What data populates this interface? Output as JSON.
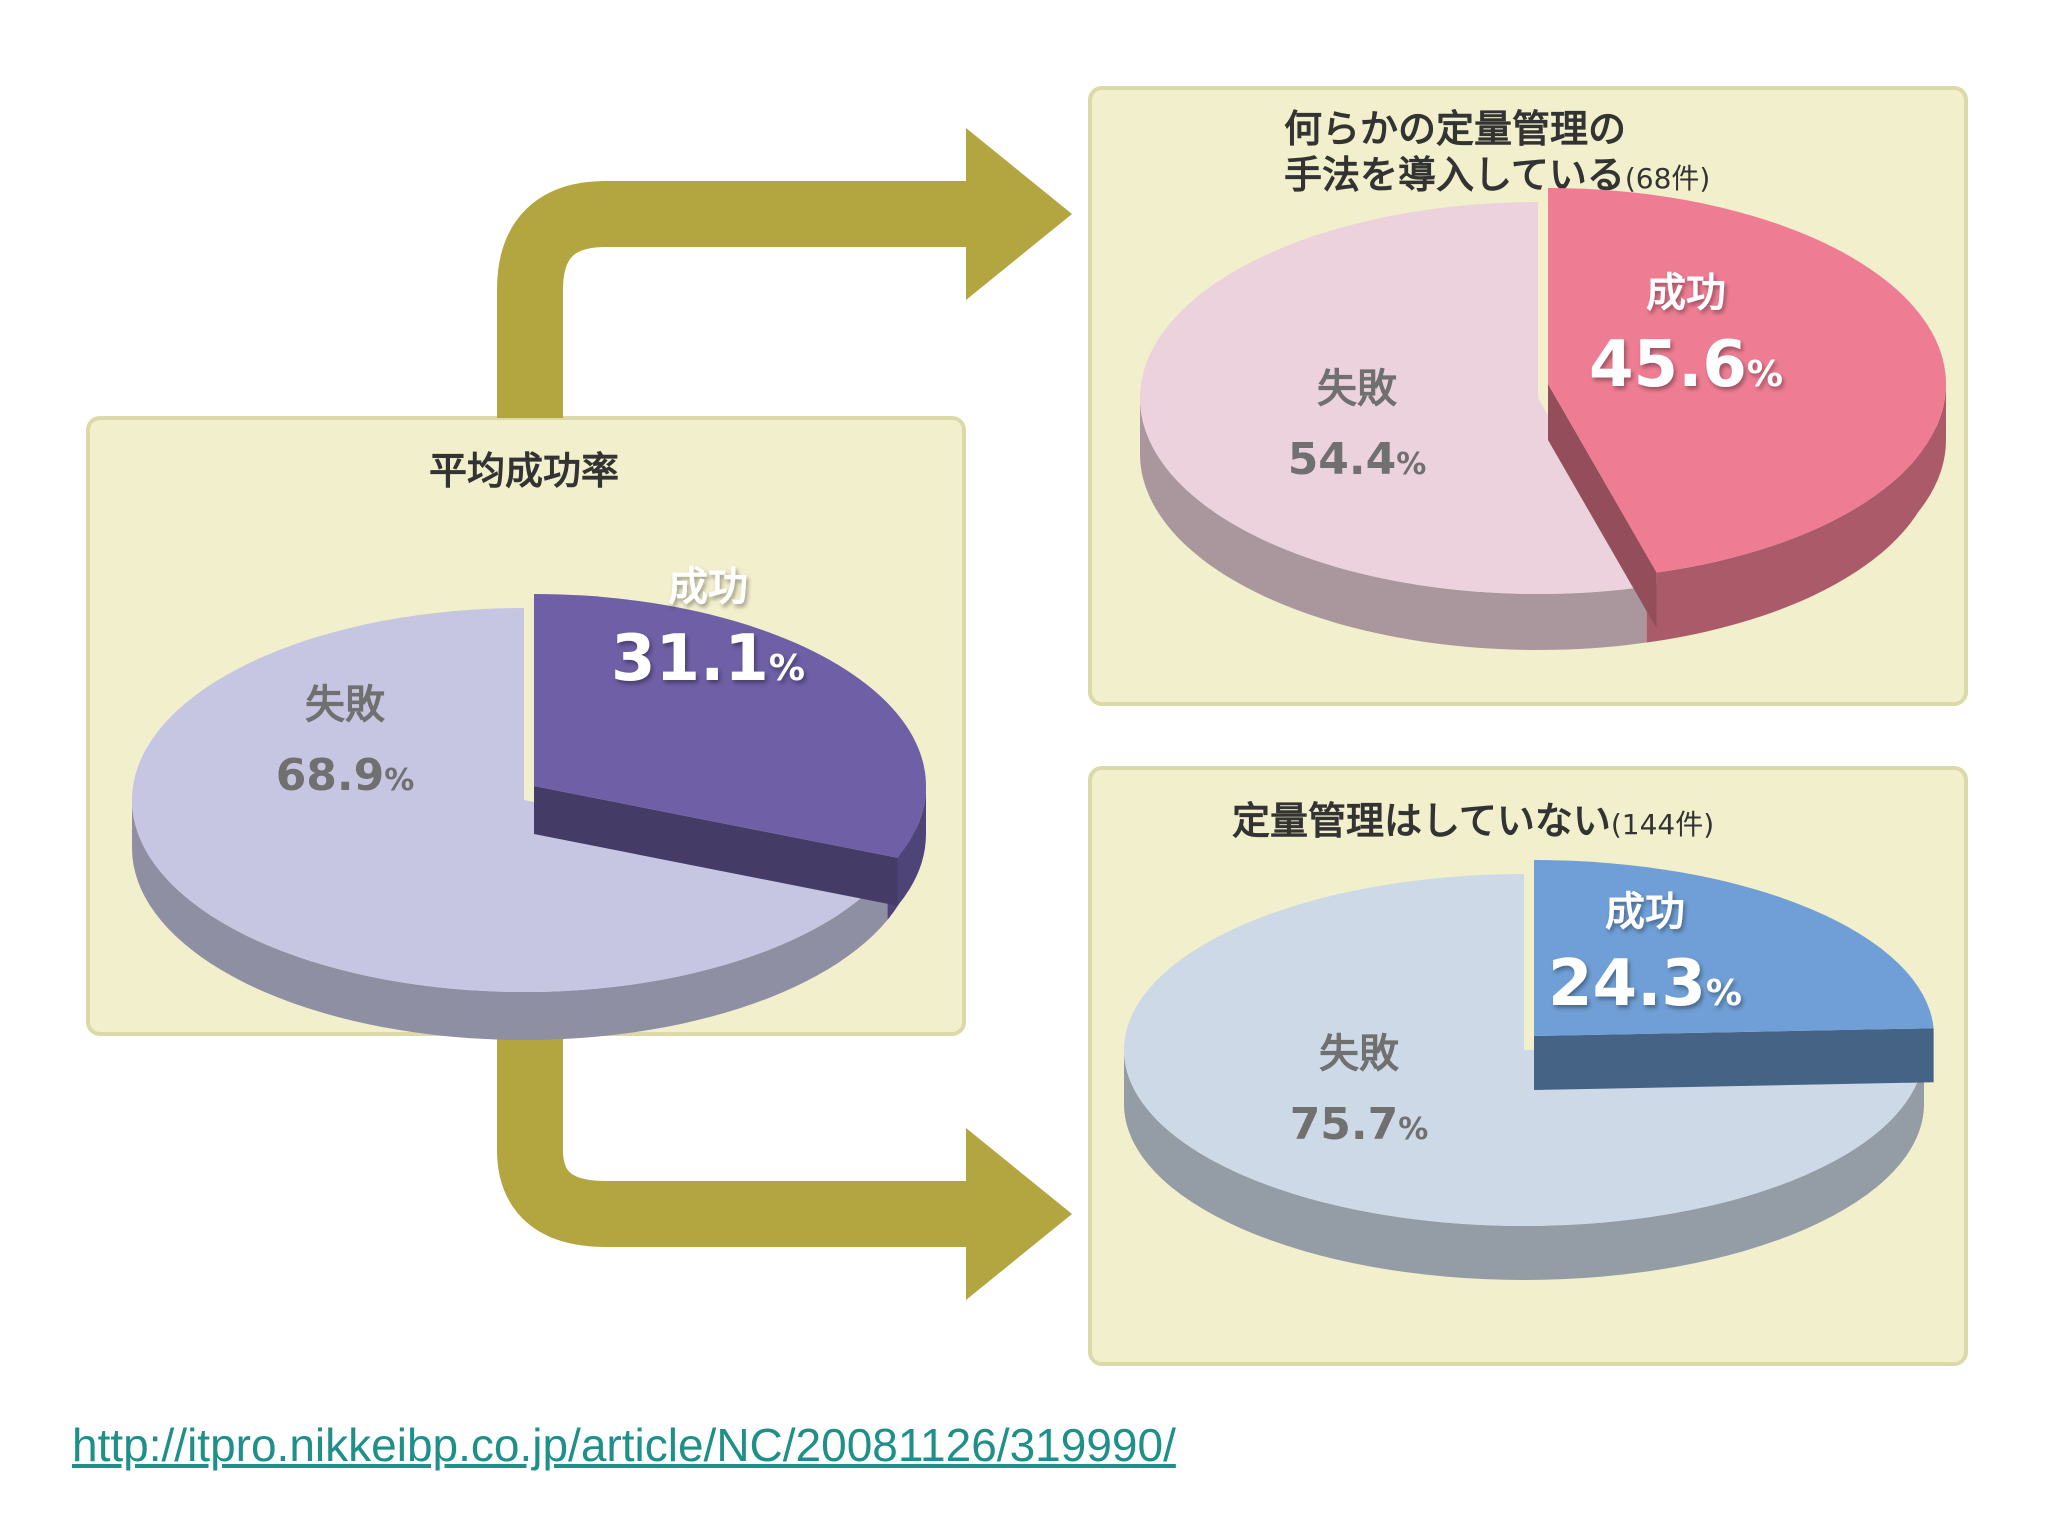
{
  "chart_data": [
    {
      "type": "pie",
      "title": "平均成功率",
      "title_note": "",
      "slices": [
        {
          "label": "成功",
          "value": 31.1,
          "display": "31.1",
          "unit": "%",
          "color": "#6e5fa6"
        },
        {
          "label": "失敗",
          "value": 68.9,
          "display": "68.9",
          "unit": "%",
          "color": "#c7c6e2"
        }
      ]
    },
    {
      "type": "pie",
      "title_lines": [
        "何らかの定量管理の",
        "手法を導入している"
      ],
      "title_note": "(68件)",
      "slices": [
        {
          "label": "成功",
          "value": 45.6,
          "display": "45.6",
          "unit": "%",
          "color": "#ee7d93"
        },
        {
          "label": "失敗",
          "value": 54.4,
          "display": "54.4",
          "unit": "%",
          "color": "#ecd2dc"
        }
      ]
    },
    {
      "type": "pie",
      "title": "定量管理はしていない",
      "title_note": "(144件)",
      "slices": [
        {
          "label": "成功",
          "value": 24.3,
          "display": "24.3",
          "unit": "%",
          "color": "#6f9fd6"
        },
        {
          "label": "失敗",
          "value": 75.7,
          "display": "75.7",
          "unit": "%",
          "color": "#cdd9e6"
        }
      ]
    }
  ],
  "colors": {
    "panel_bg": "#f1efcc",
    "panel_border": "#dcd9a8",
    "arrow": "#b3a53f",
    "label_dark": "#707070",
    "label_light": "#ffffff"
  },
  "source_link": "http://itpro.nikkeibp.co.jp/article/NC/20081126/319990/"
}
